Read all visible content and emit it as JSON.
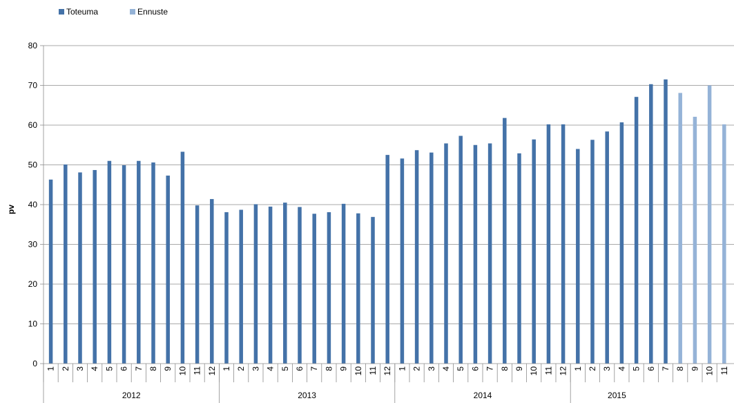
{
  "chart_data": {
    "type": "bar",
    "ylabel": "pv",
    "ylim": [
      0,
      80
    ],
    "yticks": [
      0,
      10,
      20,
      30,
      40,
      50,
      60,
      70,
      80
    ],
    "grid": true,
    "legend_position": "top-left",
    "month_labels": [
      "1",
      "2",
      "3",
      "4",
      "5",
      "6",
      "7",
      "8",
      "9",
      "10",
      "11",
      "12"
    ],
    "years": [
      "2012",
      "2013",
      "2014",
      "2015"
    ],
    "series": [
      {
        "name": "Toteuma",
        "color": "#4472a8",
        "values": [
          46.3,
          50.1,
          48.1,
          48.7,
          51.0,
          49.9,
          51.0,
          50.6,
          47.3,
          53.3,
          39.8,
          41.4,
          38.1,
          38.7,
          40.1,
          39.5,
          40.5,
          39.4,
          37.7,
          38.1,
          40.2,
          37.8,
          36.9,
          52.5,
          51.6,
          53.7,
          53.1,
          55.4,
          57.3,
          55.0,
          55.4,
          61.8,
          52.9,
          56.4,
          60.2,
          60.2,
          54.0,
          56.3,
          58.4,
          60.7,
          67.1,
          70.3,
          71.5,
          null,
          null,
          null,
          null,
          null
        ]
      },
      {
        "name": "Ennuste",
        "color": "#95b3d7",
        "values": [
          null,
          null,
          null,
          null,
          null,
          null,
          null,
          null,
          null,
          null,
          null,
          null,
          null,
          null,
          null,
          null,
          null,
          null,
          null,
          null,
          null,
          null,
          null,
          null,
          null,
          null,
          null,
          null,
          null,
          null,
          null,
          null,
          null,
          null,
          null,
          null,
          null,
          null,
          null,
          null,
          null,
          null,
          null,
          68.1,
          62.1,
          70.0,
          60.2,
          null
        ]
      }
    ]
  }
}
